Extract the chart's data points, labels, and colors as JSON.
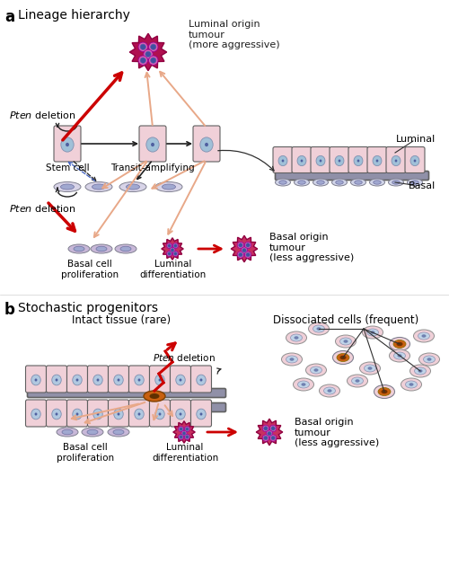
{
  "title_a": "Lineage hierarchy",
  "title_b": "Stochastic progenitors",
  "label_a": "a",
  "label_b": "b",
  "luminal_origin_title": "Luminal origin\ntumour\n(more aggressive)",
  "basal_origin_title": "Basal origin\ntumour\n(less aggressive)",
  "basal_origin_title_b": "Basal origin\ntumour\n(less aggressive)",
  "stem_cell_label": "Stem cell",
  "transit_label": "Transit-amplifying",
  "basal_prolif_label": "Basal cell\nproliferation",
  "luminal_diff_label": "Luminal\ndifferentiation",
  "luminal_label": "Luminal",
  "basal_label": "Basal",
  "intact_tissue_label": "Intact tissue (rare)",
  "dissociated_label": "Dissociated cells (frequent)",
  "pten_del_b": "Pten deletion",
  "basal_prolif_b": "Basal cell\nproliferation",
  "luminal_diff_b": "Luminal\ndifferentiation",
  "color_luminal_cell": "#f0c8d0",
  "color_basal_cell": "#b0d4e8",
  "color_tumor_luminal": "#c8145a",
  "color_tumor_basal": "#d94070",
  "color_nucleus": "#5060a0",
  "color_red_arrow": "#cc0000",
  "color_salmon_arrow": "#e8a090",
  "color_dark_arrow": "#202020",
  "color_blue_dashed": "#4060c0",
  "bg_color": "#ffffff"
}
